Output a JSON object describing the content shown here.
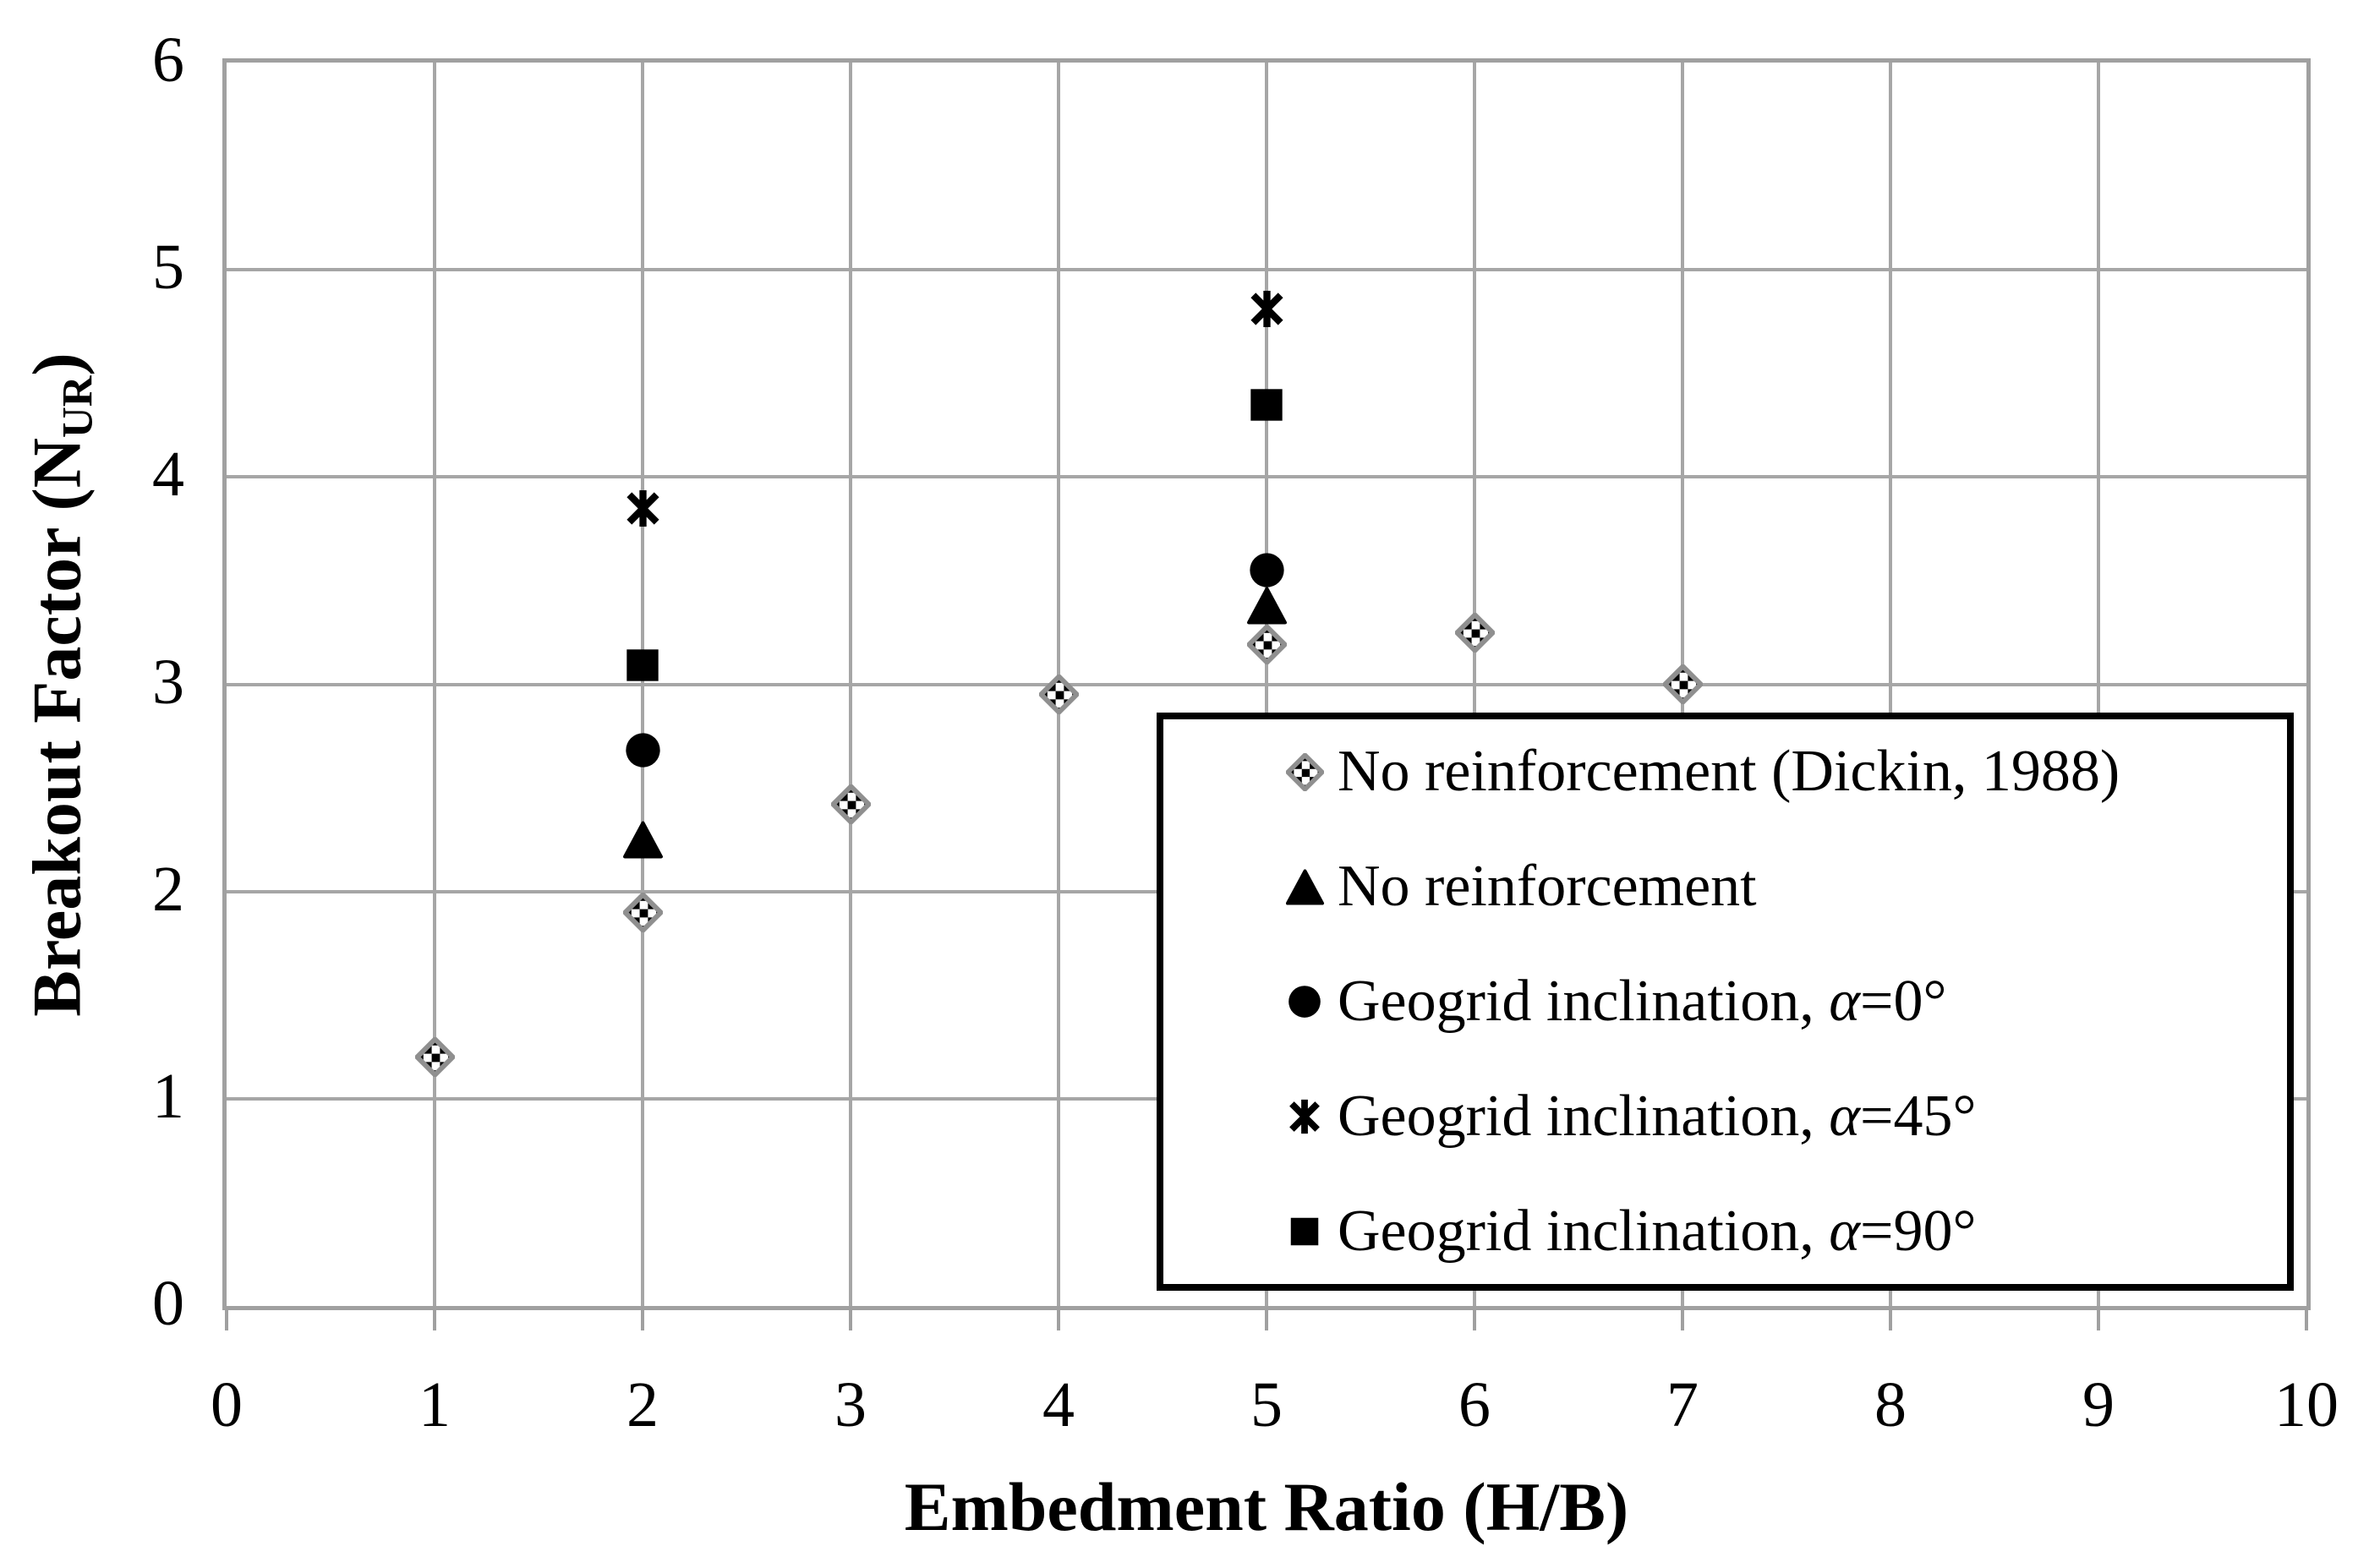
{
  "chart_data": {
    "type": "scatter",
    "title": "",
    "xlabel": "Embedment Ratio (H/B)",
    "ylabel": "Breakout Factor (NUR)",
    "ylabel_parts": [
      {
        "text": "Breakout Factor (N"
      },
      {
        "text": "UR",
        "sub": true
      },
      {
        "text": ")"
      }
    ],
    "xlim": [
      0,
      10
    ],
    "ylim": [
      0,
      6
    ],
    "xticks": [
      "0",
      "1",
      "2",
      "3",
      "4",
      "5",
      "6",
      "7",
      "8",
      "9",
      "10"
    ],
    "yticks": [
      "0",
      "1",
      "2",
      "3",
      "4",
      "5",
      "6"
    ],
    "grid": true,
    "legend_position": "inside-bottom-right",
    "series": [
      {
        "name": "No reinforcement (Dickin, 1988)",
        "marker": "diamond-checker",
        "label_parts": [
          {
            "text": "No reinforcement (Dickin, 1988)"
          }
        ],
        "points": [
          [
            1,
            1.2
          ],
          [
            2,
            1.9
          ],
          [
            3,
            2.42
          ],
          [
            4,
            2.95
          ],
          [
            5,
            3.19
          ],
          [
            6,
            3.25
          ],
          [
            7,
            3.0
          ]
        ]
      },
      {
        "name": "No reinforcement",
        "marker": "triangle",
        "label_parts": [
          {
            "text": "No reinforcement"
          }
        ],
        "points": [
          [
            2,
            2.25
          ],
          [
            5,
            3.38
          ]
        ]
      },
      {
        "name": "Geogrid inclination, α=0°",
        "marker": "circle",
        "label_parts": [
          {
            "text": "Geogrid inclination, "
          },
          {
            "text": "α",
            "italic": true
          },
          {
            "text": "=0°"
          }
        ],
        "points": [
          [
            2,
            2.68
          ],
          [
            5,
            3.55
          ]
        ]
      },
      {
        "name": "Geogrid inclination, α=45°",
        "marker": "asterisk",
        "label_parts": [
          {
            "text": "Geogrid inclination, "
          },
          {
            "text": "α",
            "italic": true
          },
          {
            "text": "=45°"
          }
        ],
        "points": [
          [
            2,
            3.85
          ],
          [
            5,
            4.81
          ]
        ]
      },
      {
        "name": "Geogrid inclination, α=90°",
        "marker": "square",
        "label_parts": [
          {
            "text": "Geogrid inclination, "
          },
          {
            "text": "α",
            "italic": true
          },
          {
            "text": "=90°"
          }
        ],
        "points": [
          [
            2,
            3.09
          ],
          [
            5,
            4.35
          ]
        ]
      }
    ]
  },
  "colors": {
    "background": "#ffffff",
    "text": "#000000",
    "gridline": "#a6a6a6",
    "axis_border": "#a0a0a0",
    "marker_fill": "#000000",
    "diamond_border": "#8f8f8f",
    "legend_border": "#000000"
  }
}
